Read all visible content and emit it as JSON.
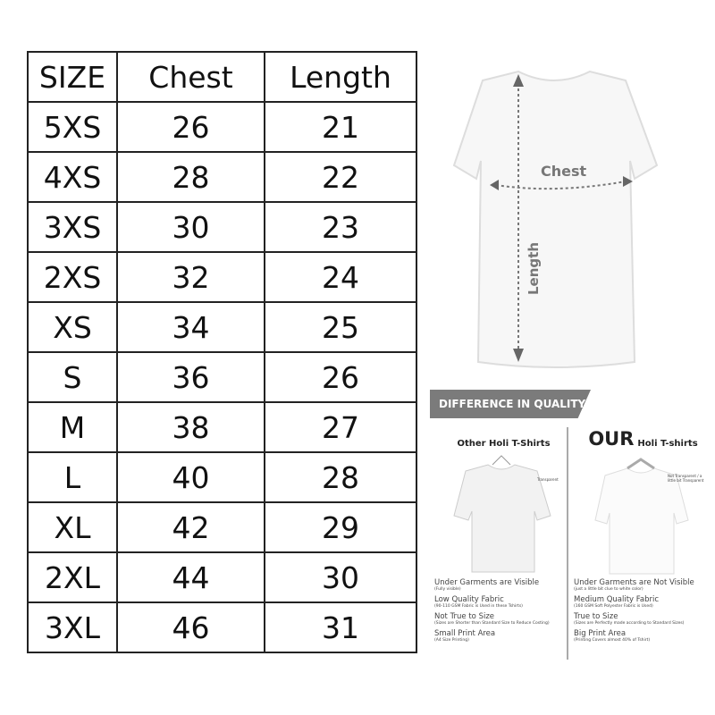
{
  "table": {
    "headers": [
      "SIZE",
      "Chest",
      "Length"
    ],
    "rows": [
      [
        "5XS",
        "26",
        "21"
      ],
      [
        "4XS",
        "28",
        "22"
      ],
      [
        "3XS",
        "30",
        "23"
      ],
      [
        "2XS",
        "32",
        "24"
      ],
      [
        "XS",
        "34",
        "25"
      ],
      [
        "S",
        "36",
        "26"
      ],
      [
        "M",
        "38",
        "27"
      ],
      [
        "L",
        "40",
        "28"
      ],
      [
        "XL",
        "42",
        "29"
      ],
      [
        "2XL",
        "44",
        "30"
      ],
      [
        "3XL",
        "46",
        "31"
      ]
    ]
  },
  "diagram": {
    "chest_label": "Chest",
    "length_label": "Length"
  },
  "quality": {
    "banner": "DIFFERENCE IN QUALITY",
    "other": {
      "title": "Other Holi T-Shirts",
      "note": "Transparent",
      "items": [
        {
          "title": "Under Garments are Visible",
          "sub": "(Fully visible)"
        },
        {
          "title": "Low Quality Fabric",
          "sub": "(90-110 GSM Fabric is Used in these Tshirts)"
        },
        {
          "title": "Not True to Size",
          "sub": "(Sizes are Shorter than Standard Size to Reduce Costing)"
        },
        {
          "title": "Small Print Area",
          "sub": "(A4 Size Printing)"
        }
      ]
    },
    "ours": {
      "our": "OUR",
      "title": "Holi T-shirts",
      "note": "Not Transparent / a little bit Transparent",
      "items": [
        {
          "title": "Under Garments are Not Visible",
          "sub": "(just a little bit clue to white color)"
        },
        {
          "title": "Medium Quality Fabric",
          "sub": "(160 GSM Soft Polyester Fabric is Used)"
        },
        {
          "title": "True to Size",
          "sub": "(Sizes are Perfectly made according to Standard Sizes)"
        },
        {
          "title": "Big Print Area",
          "sub": "(Printing Covers almost 40% of Tshirt)"
        }
      ]
    }
  }
}
